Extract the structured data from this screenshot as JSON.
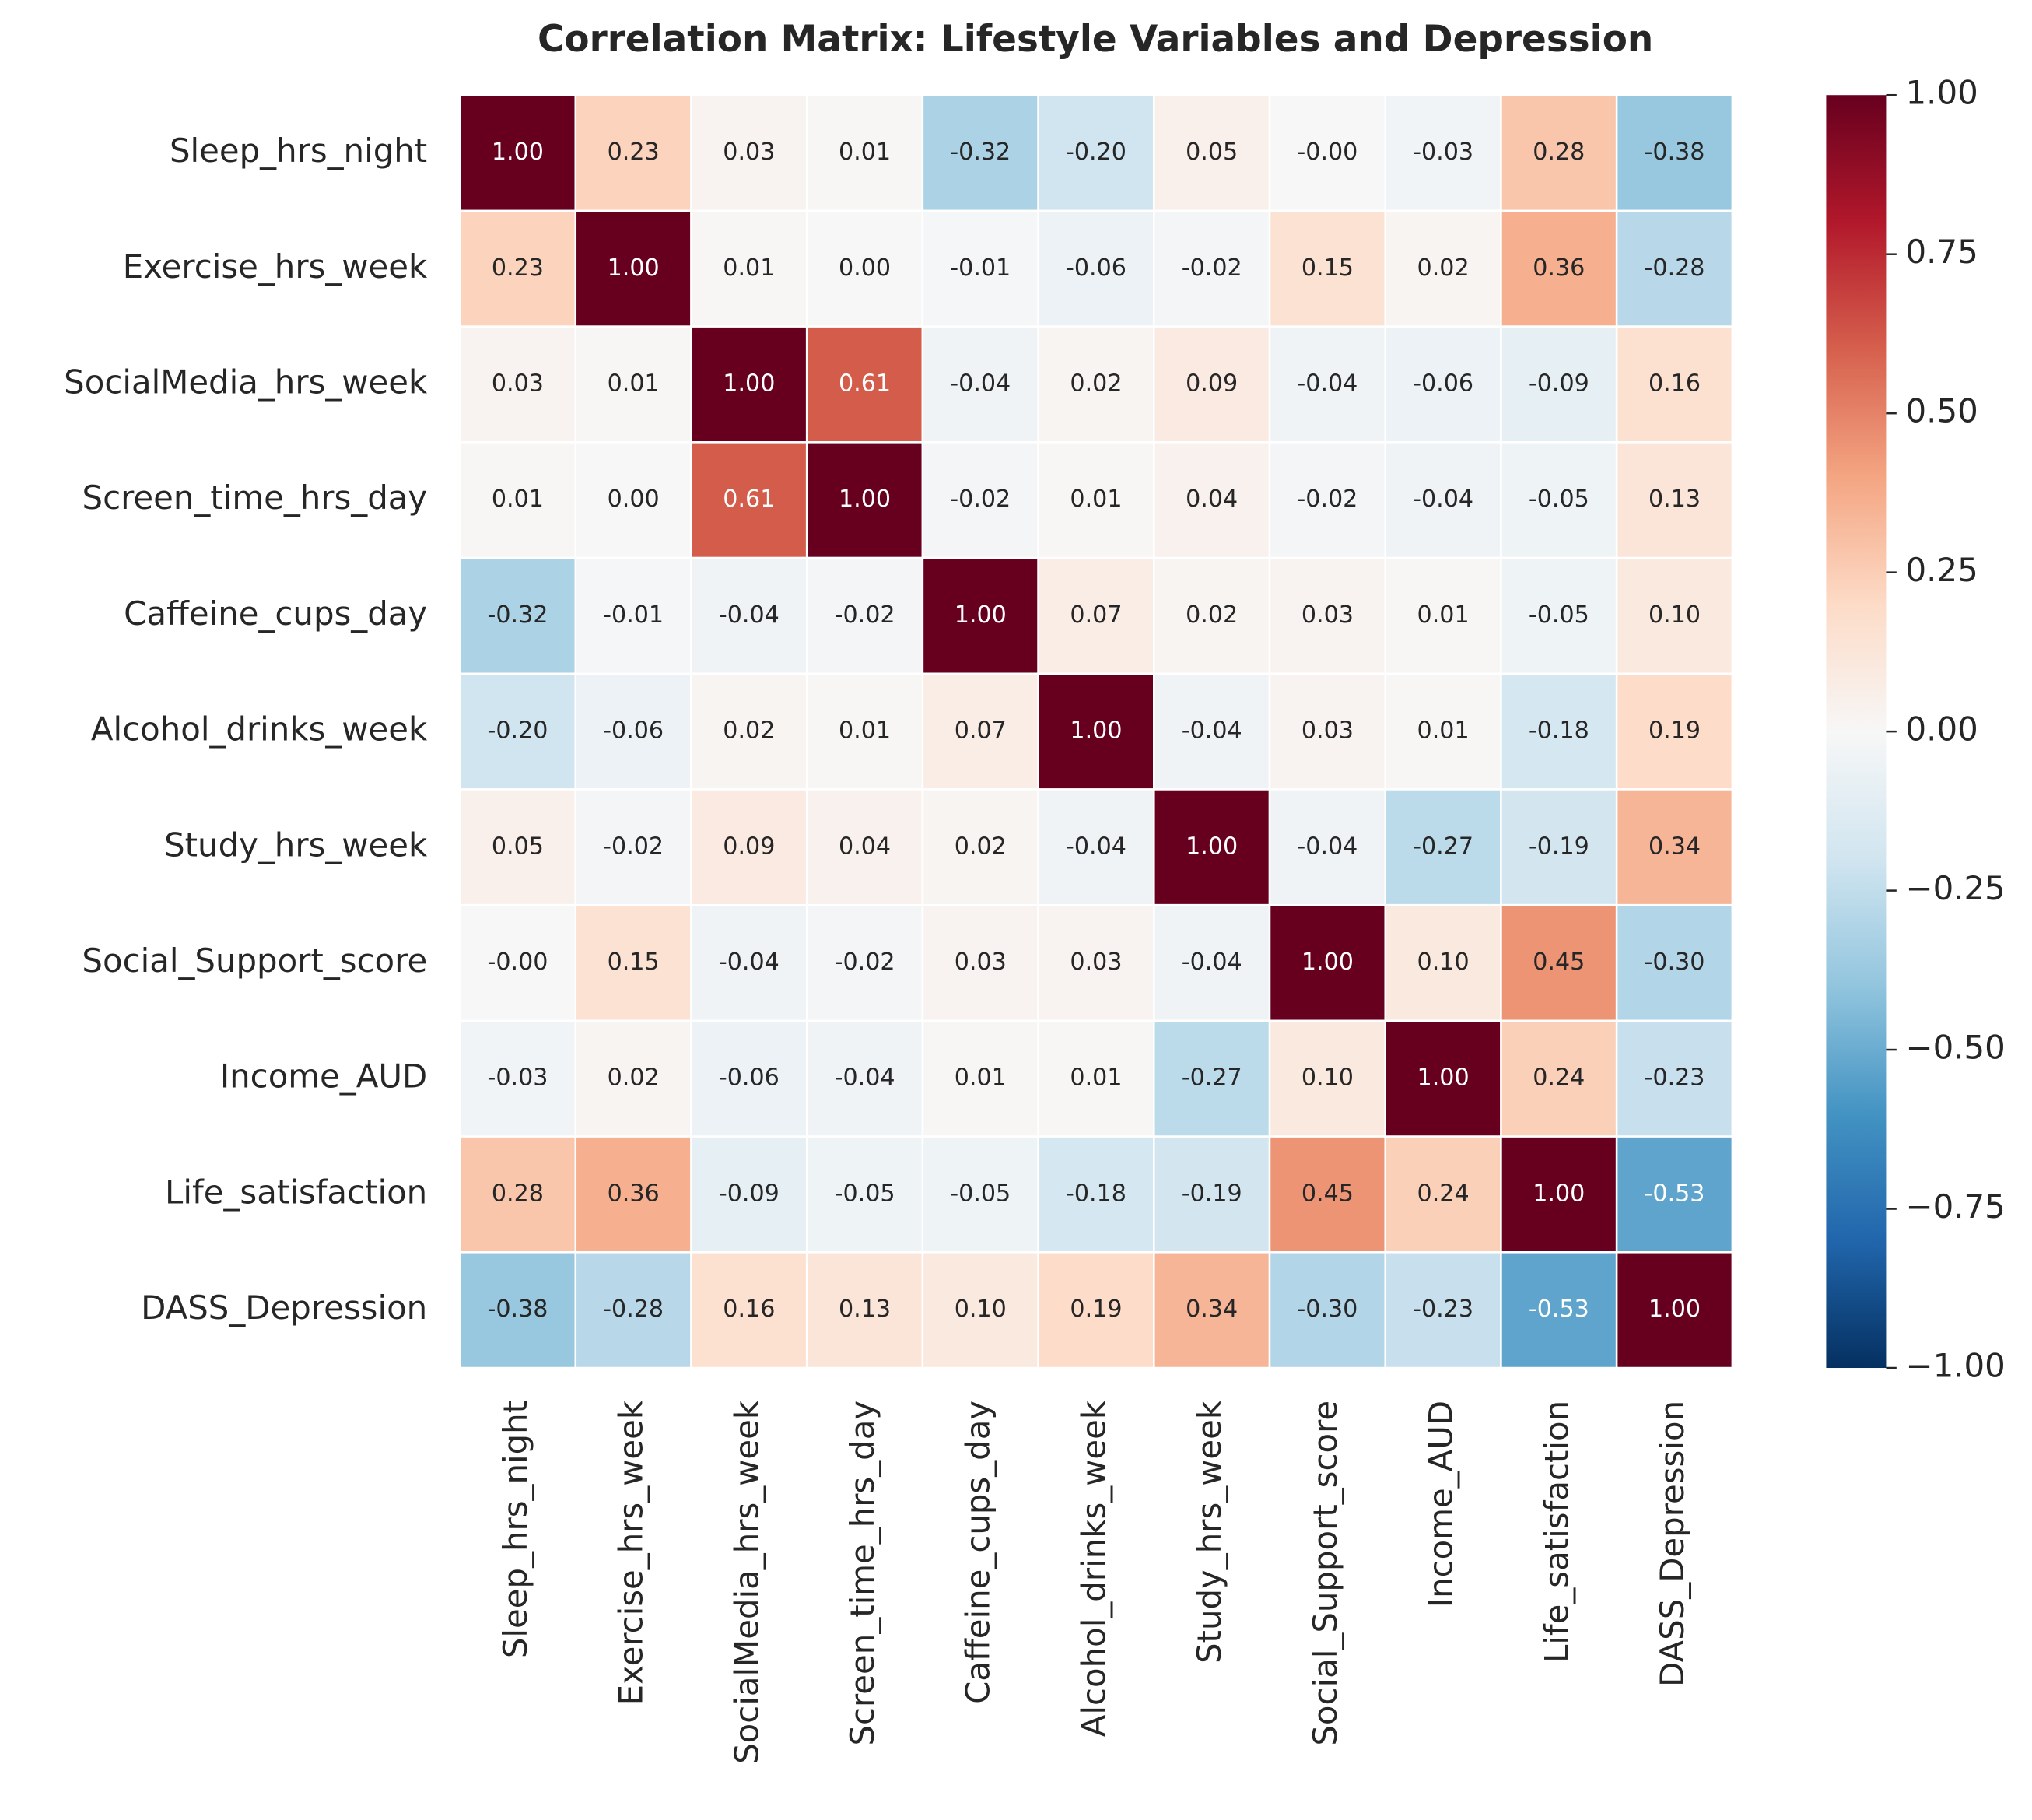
{
  "chart_data": {
    "type": "heatmap",
    "title": "Correlation Matrix: Lifestyle Variables and Depression",
    "categories": [
      "Sleep_hrs_night",
      "Exercise_hrs_week",
      "SocialMedia_hrs_week",
      "Screen_time_hrs_day",
      "Caffeine_cups_day",
      "Alcohol_drinks_week",
      "Study_hrs_week",
      "Social_Support_score",
      "Income_AUD",
      "Life_satisfaction",
      "DASS_Depression"
    ],
    "values": [
      [
        1,
        0.23,
        0.03,
        0.01,
        -0.32,
        -0.2,
        0.05,
        0,
        -0.03,
        0.28,
        -0.38
      ],
      [
        0.23,
        1,
        0.01,
        0,
        -0.01,
        -0.06,
        -0.02,
        0.15,
        0.02,
        0.36,
        -0.28
      ],
      [
        0.03,
        0.01,
        1,
        0.61,
        -0.04,
        0.02,
        0.09,
        -0.04,
        -0.06,
        -0.09,
        0.16
      ],
      [
        0.01,
        0,
        0.61,
        1,
        -0.02,
        0.01,
        0.04,
        -0.02,
        -0.04,
        -0.05,
        0.13
      ],
      [
        -0.32,
        -0.01,
        -0.04,
        -0.02,
        1,
        0.07,
        0.02,
        0.03,
        0.01,
        -0.05,
        0.1
      ],
      [
        -0.2,
        -0.06,
        0.02,
        0.01,
        0.07,
        1,
        -0.04,
        0.03,
        0.01,
        -0.18,
        0.19
      ],
      [
        0.05,
        -0.02,
        0.09,
        0.04,
        0.02,
        -0.04,
        1,
        -0.04,
        -0.27,
        -0.19,
        0.34
      ],
      [
        0,
        0.15,
        -0.04,
        -0.02,
        0.03,
        0.03,
        -0.04,
        1,
        0.1,
        0.45,
        -0.3
      ],
      [
        -0.03,
        0.02,
        -0.06,
        -0.04,
        0.01,
        0.01,
        -0.27,
        0.1,
        1,
        0.24,
        -0.23
      ],
      [
        0.28,
        0.36,
        -0.09,
        -0.05,
        -0.05,
        -0.18,
        -0.19,
        0.45,
        0.24,
        1,
        -0.53
      ],
      [
        -0.38,
        -0.28,
        0.16,
        0.13,
        0.1,
        0.19,
        0.34,
        -0.3,
        -0.23,
        -0.53,
        1
      ]
    ],
    "value_labels": [
      [
        "1.00",
        "0.23",
        "0.03",
        "0.01",
        "-0.32",
        "-0.20",
        "0.05",
        "-0.00",
        "-0.03",
        "0.28",
        "-0.38"
      ],
      [
        "0.23",
        "1.00",
        "0.01",
        "0.00",
        "-0.01",
        "-0.06",
        "-0.02",
        "0.15",
        "0.02",
        "0.36",
        "-0.28"
      ],
      [
        "0.03",
        "0.01",
        "1.00",
        "0.61",
        "-0.04",
        "0.02",
        "0.09",
        "-0.04",
        "-0.06",
        "-0.09",
        "0.16"
      ],
      [
        "0.01",
        "0.00",
        "0.61",
        "1.00",
        "-0.02",
        "0.01",
        "0.04",
        "-0.02",
        "-0.04",
        "-0.05",
        "0.13"
      ],
      [
        "-0.32",
        "-0.01",
        "-0.04",
        "-0.02",
        "1.00",
        "0.07",
        "0.02",
        "0.03",
        "0.01",
        "-0.05",
        "0.10"
      ],
      [
        "-0.20",
        "-0.06",
        "0.02",
        "0.01",
        "0.07",
        "1.00",
        "-0.04",
        "0.03",
        "0.01",
        "-0.18",
        "0.19"
      ],
      [
        "0.05",
        "-0.02",
        "0.09",
        "0.04",
        "0.02",
        "-0.04",
        "1.00",
        "-0.04",
        "-0.27",
        "-0.19",
        "0.34"
      ],
      [
        "-0.00",
        "0.15",
        "-0.04",
        "-0.02",
        "0.03",
        "0.03",
        "-0.04",
        "1.00",
        "0.10",
        "0.45",
        "-0.30"
      ],
      [
        "-0.03",
        "0.02",
        "-0.06",
        "-0.04",
        "0.01",
        "0.01",
        "-0.27",
        "0.10",
        "1.00",
        "0.24",
        "-0.23"
      ],
      [
        "0.28",
        "0.36",
        "-0.09",
        "-0.05",
        "-0.05",
        "-0.18",
        "-0.19",
        "0.45",
        "0.24",
        "1.00",
        "-0.53"
      ],
      [
        "-0.38",
        "-0.28",
        "0.16",
        "0.13",
        "0.10",
        "0.19",
        "0.34",
        "-0.30",
        "-0.23",
        "-0.53",
        "1.00"
      ]
    ],
    "colormap": "RdBu_r",
    "zlim": [
      -1,
      1
    ],
    "zticks": [
      {
        "value": -1,
        "label": "−1.00"
      },
      {
        "value": -0.75,
        "label": "−0.75"
      },
      {
        "value": -0.5,
        "label": "−0.50"
      },
      {
        "value": -0.25,
        "label": "−0.25"
      },
      {
        "value": 0,
        "label": "0.00"
      },
      0.25,
      {
        "value": 0.5,
        "label": "0.50"
      },
      0.75,
      {
        "value": 1,
        "label": "1.00"
      }
    ]
  }
}
